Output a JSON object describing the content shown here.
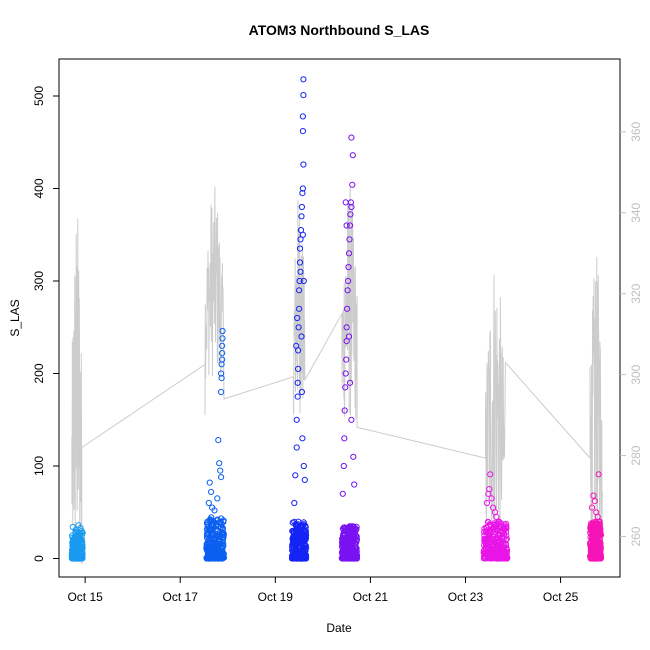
{
  "chart_data": {
    "type": "scatter",
    "title": "ATOM3 Northbound S_LAS",
    "xlabel": "Date",
    "ylabel": "S_LAS",
    "x_ticks": [
      "Oct 15",
      "Oct 17",
      "Oct 19",
      "Oct 21",
      "Oct 23",
      "Oct 25"
    ],
    "x_tick_days": [
      15,
      17,
      19,
      21,
      23,
      25
    ],
    "xlim_days": [
      14.45,
      26.25
    ],
    "ylim": [
      -20,
      540
    ],
    "y_ticks": [
      0,
      100,
      200,
      300,
      400,
      500
    ],
    "y2lim": [
      250,
      378
    ],
    "y2_ticks": [
      260,
      280,
      300,
      320,
      340,
      360
    ],
    "y2_tick_color": "#c0c0c0",
    "grid": false,
    "points_marker": "open circle",
    "series": [
      {
        "color": "#1a9bf0",
        "day_range": [
          14.72,
          14.95
        ],
        "typical_max": 30,
        "points": [
          [
            14.74,
            34
          ],
          [
            14.8,
            31
          ],
          [
            14.86,
            36
          ],
          [
            14.9,
            33
          ],
          [
            14.93,
            28
          ]
        ]
      },
      {
        "color": "#0b5ff0",
        "day_range": [
          17.55,
          17.92
        ],
        "typical_max": 45,
        "points": [
          [
            17.6,
            60
          ],
          [
            17.62,
            82
          ],
          [
            17.65,
            72
          ],
          [
            17.67,
            55
          ],
          [
            17.7,
            40
          ],
          [
            17.72,
            52
          ],
          [
            17.75,
            35
          ],
          [
            17.78,
            65
          ],
          [
            17.8,
            128
          ],
          [
            17.82,
            103
          ],
          [
            17.84,
            95
          ],
          [
            17.86,
            88
          ],
          [
            17.86,
            180
          ],
          [
            17.87,
            195
          ],
          [
            17.87,
            210
          ],
          [
            17.88,
            222
          ],
          [
            17.88,
            230
          ],
          [
            17.89,
            238
          ],
          [
            17.89,
            246
          ],
          [
            17.86,
            200
          ],
          [
            17.88,
            215
          ]
        ]
      },
      {
        "color": "#1524f5",
        "day_range": [
          19.35,
          19.65
        ],
        "typical_max": 40,
        "points": [
          [
            19.4,
            60
          ],
          [
            19.42,
            90
          ],
          [
            19.45,
            120
          ],
          [
            19.45,
            150
          ],
          [
            19.47,
            175
          ],
          [
            19.47,
            190
          ],
          [
            19.48,
            205
          ],
          [
            19.48,
            225
          ],
          [
            19.49,
            250
          ],
          [
            19.5,
            270
          ],
          [
            19.5,
            290
          ],
          [
            19.51,
            300
          ],
          [
            19.52,
            320
          ],
          [
            19.52,
            335
          ],
          [
            19.53,
            345
          ],
          [
            19.54,
            355
          ],
          [
            19.55,
            370
          ],
          [
            19.56,
            380
          ],
          [
            19.57,
            395
          ],
          [
            19.58,
            400
          ],
          [
            19.59,
            426
          ],
          [
            19.58,
            462
          ],
          [
            19.58,
            478
          ],
          [
            19.59,
            501
          ],
          [
            19.59,
            518
          ],
          [
            19.55,
            240
          ],
          [
            19.56,
            180
          ],
          [
            19.57,
            130
          ],
          [
            19.6,
            100
          ],
          [
            19.62,
            85
          ],
          [
            19.44,
            230
          ],
          [
            19.46,
            260
          ],
          [
            19.53,
            310
          ],
          [
            19.58,
            350
          ],
          [
            19.6,
            300
          ]
        ]
      },
      {
        "color": "#7a12f2",
        "day_range": [
          20.4,
          20.72
        ],
        "typical_max": 35,
        "points": [
          [
            20.42,
            70
          ],
          [
            20.44,
            100
          ],
          [
            20.45,
            130
          ],
          [
            20.46,
            160
          ],
          [
            20.47,
            185
          ],
          [
            20.48,
            200
          ],
          [
            20.49,
            215
          ],
          [
            20.5,
            235
          ],
          [
            20.5,
            250
          ],
          [
            20.51,
            270
          ],
          [
            20.52,
            290
          ],
          [
            20.53,
            300
          ],
          [
            20.54,
            315
          ],
          [
            20.55,
            330
          ],
          [
            20.56,
            345
          ],
          [
            20.57,
            360
          ],
          [
            20.58,
            372
          ],
          [
            20.59,
            385
          ],
          [
            20.6,
            380
          ],
          [
            20.62,
            404
          ],
          [
            20.63,
            436
          ],
          [
            20.6,
            455
          ],
          [
            20.48,
            385
          ],
          [
            20.5,
            360
          ],
          [
            20.55,
            240
          ],
          [
            20.57,
            190
          ],
          [
            20.6,
            150
          ],
          [
            20.64,
            110
          ],
          [
            20.66,
            80
          ]
        ]
      },
      {
        "color": "#e815e8",
        "day_range": [
          23.38,
          23.88
        ],
        "typical_max": 40,
        "points": [
          [
            23.45,
            60
          ],
          [
            23.48,
            70
          ],
          [
            23.5,
            75
          ],
          [
            23.52,
            91
          ],
          [
            23.55,
            65
          ],
          [
            23.58,
            55
          ],
          [
            23.62,
            50
          ],
          [
            23.65,
            45
          ],
          [
            23.7,
            40
          ],
          [
            23.75,
            38
          ]
        ]
      },
      {
        "color": "#f514b8",
        "day_range": [
          25.62,
          25.85
        ],
        "typical_max": 40,
        "points": [
          [
            25.66,
            55
          ],
          [
            25.69,
            68
          ],
          [
            25.72,
            62
          ],
          [
            25.75,
            50
          ],
          [
            25.78,
            45
          ],
          [
            25.8,
            91
          ],
          [
            25.82,
            40
          ]
        ]
      }
    ],
    "secondary_line": {
      "color": "#cccccc",
      "segments": [
        {
          "day_range": [
            14.72,
            14.93
          ],
          "min": 252,
          "max": 343
        },
        {
          "day_range": [
            17.52,
            17.9
          ],
          "min": 299,
          "max": 347
        },
        {
          "day_range": [
            19.38,
            19.62
          ],
          "min": 290,
          "max": 346
        },
        {
          "day_range": [
            20.4,
            20.72
          ],
          "min": 288,
          "max": 348
        },
        {
          "day_range": [
            23.42,
            23.82
          ],
          "min": 258,
          "max": 332
        },
        {
          "day_range": [
            25.62,
            25.88
          ],
          "min": 260,
          "max": 330
        }
      ],
      "gap_points": [
        [
          14.93,
          282
        ],
        [
          17.52,
          290
        ],
        [
          17.92,
          294
        ],
        [
          19.38,
          292
        ],
        [
          19.64,
          299
        ],
        [
          20.4,
          307
        ],
        [
          20.72,
          287
        ],
        [
          23.42,
          291
        ],
        [
          23.84,
          303
        ],
        [
          25.62,
          302
        ]
      ]
    }
  }
}
